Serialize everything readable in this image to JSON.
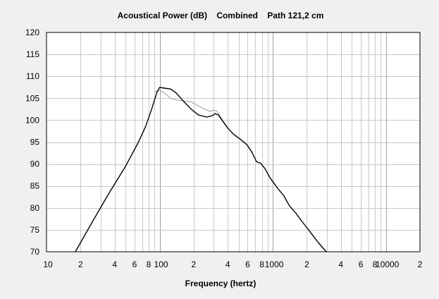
{
  "chart_data": {
    "type": "line",
    "title": "Acoustical Power (dB)    Combined    Path 121,2 cm",
    "xlabel": "Frequency (hertz)",
    "ylabel": "",
    "xscale": "log",
    "xlim": [
      10,
      20000
    ],
    "ylim": [
      70,
      120
    ],
    "grid": true,
    "legend": "none",
    "x_tick_labels": [
      {
        "value": 10,
        "label": "10"
      },
      {
        "value": 20,
        "label": "2"
      },
      {
        "value": 40,
        "label": "4"
      },
      {
        "value": 60,
        "label": "6"
      },
      {
        "value": 80,
        "label": "8"
      },
      {
        "value": 100,
        "label": "100"
      },
      {
        "value": 200,
        "label": "2"
      },
      {
        "value": 400,
        "label": "4"
      },
      {
        "value": 600,
        "label": "6"
      },
      {
        "value": 800,
        "label": "8"
      },
      {
        "value": 1000,
        "label": "1000"
      },
      {
        "value": 2000,
        "label": "2"
      },
      {
        "value": 4000,
        "label": "4"
      },
      {
        "value": 6000,
        "label": "6"
      },
      {
        "value": 8000,
        "label": "8"
      },
      {
        "value": 10000,
        "label": "10000"
      },
      {
        "value": 20000,
        "label": "2"
      }
    ],
    "y_ticks": [
      70,
      75,
      80,
      85,
      90,
      95,
      100,
      105,
      110,
      115,
      120
    ],
    "colors": {
      "main": "#000000",
      "secondary": "#9a9a9a",
      "grid": "#c8c8c8",
      "grid_major": "#a0a0a0",
      "plot_bg": "#ffffff",
      "window_bg": "#f0f0f0"
    },
    "series": [
      {
        "x": [
          18,
          25,
          35,
          50,
          65,
          75,
          85,
          95,
          100,
          110,
          125,
          140,
          160,
          190,
          220,
          260,
          290,
          310,
          330,
          360,
          400,
          450,
          520,
          590,
          650,
          720,
          780,
          850,
          950,
          1100,
          1250,
          1400,
          1600,
          1800,
          2100,
          2400,
          2700,
          3000
        ],
        "y": [
          70,
          76.5,
          83,
          89.5,
          95,
          98.5,
          102.5,
          106.5,
          107.5,
          107.3,
          107.1,
          106.2,
          104.5,
          102.5,
          101.2,
          100.7,
          101.0,
          101.5,
          101.2,
          99.8,
          98.2,
          96.8,
          95.6,
          94.4,
          92.8,
          90.5,
          90.2,
          89.0,
          86.8,
          84.5,
          82.8,
          80.5,
          78.8,
          77.0,
          74.8,
          72.8,
          71.2,
          69.9
        ]
      },
      {
        "x": [
          90,
          100,
          110,
          125,
          140,
          160,
          190,
          220,
          250,
          280,
          300,
          320,
          350,
          400
        ],
        "y": [
          106.5,
          106.8,
          106.2,
          105.0,
          104.6,
          104.4,
          104.2,
          103.3,
          102.5,
          102.0,
          102.3,
          102.1,
          100.5,
          98.3
        ]
      }
    ]
  }
}
